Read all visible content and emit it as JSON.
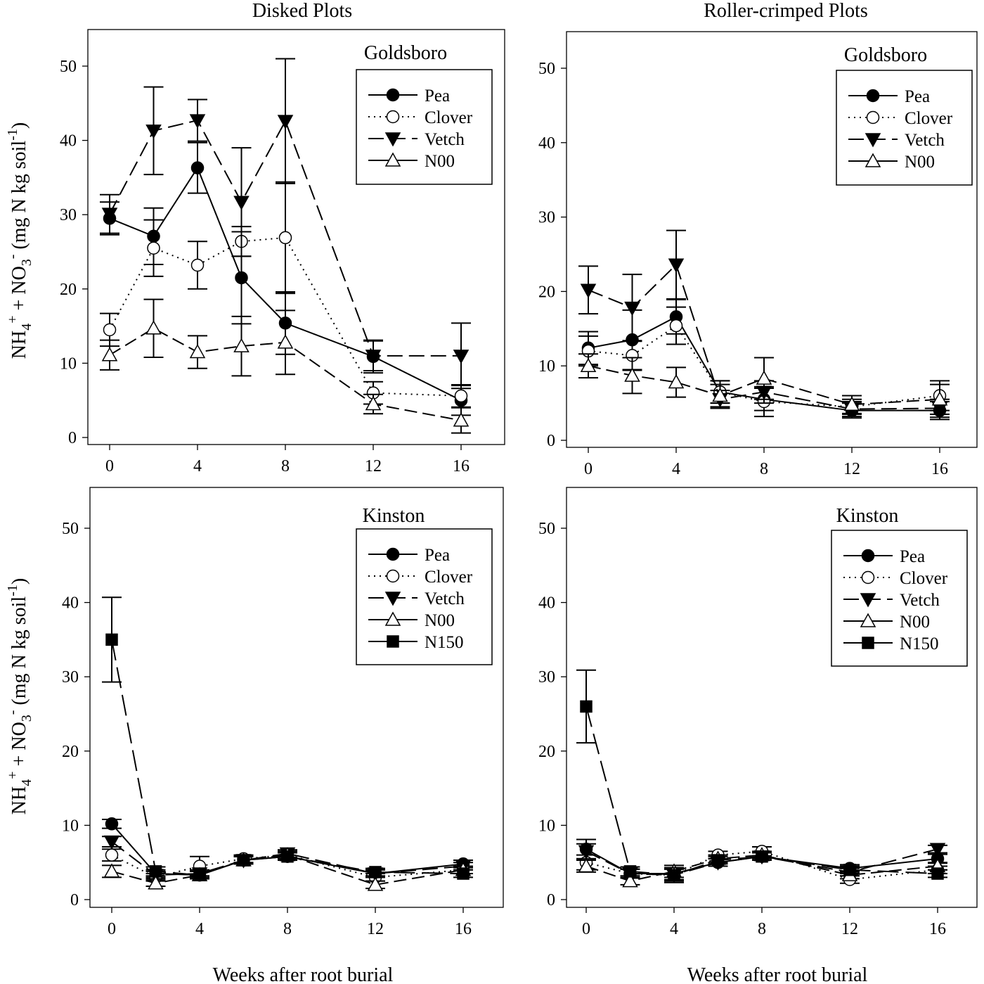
{
  "chart_data": [
    {
      "type": "line",
      "column_title": "Disked Plots",
      "site": "Goldsboro",
      "x": [
        0,
        2,
        4,
        6,
        8,
        12,
        16
      ],
      "ylim": [
        0,
        55
      ],
      "yticks": [
        0,
        10,
        20,
        30,
        40,
        50
      ],
      "xticks": [
        0,
        4,
        8,
        12,
        16
      ],
      "legend_position": "top-right",
      "series": [
        {
          "name": "Pea",
          "values": [
            29.5,
            27.1,
            36.3,
            21.5,
            15.4,
            10.9,
            5.0
          ],
          "err": [
            2.2,
            3.8,
            3.4,
            6.2,
            4.2,
            2.2,
            2.0
          ]
        },
        {
          "name": "Clover",
          "values": [
            14.5,
            25.5,
            23.2,
            26.4,
            26.9,
            6.0,
            5.6
          ],
          "err": [
            2.2,
            3.8,
            3.2,
            2.0,
            7.5,
            1.5,
            1.5
          ]
        },
        {
          "name": "Vetch",
          "values": [
            30.1,
            41.3,
            42.7,
            31.7,
            42.6,
            11.0,
            11.0
          ],
          "err": [
            2.6,
            5.9,
            2.8,
            7.3,
            8.4,
            2.0,
            4.4
          ]
        },
        {
          "name": "N00",
          "values": [
            11.1,
            14.7,
            11.5,
            12.3,
            12.8,
            4.5,
            2.3
          ],
          "err": [
            2.0,
            3.9,
            2.2,
            4.0,
            4.3,
            1.3,
            1.7
          ]
        }
      ]
    },
    {
      "type": "line",
      "column_title": "Roller-crimped Plots",
      "site": "Goldsboro",
      "x": [
        0,
        2,
        4,
        6,
        8,
        12,
        16
      ],
      "ylim": [
        0,
        55
      ],
      "yticks": [
        0,
        10,
        20,
        30,
        40,
        50
      ],
      "xticks": [
        0,
        4,
        8,
        12,
        16
      ],
      "legend_position": "top-right",
      "series": [
        {
          "name": "Pea",
          "values": [
            12.4,
            13.5,
            16.6,
            6.5,
            5.5,
            4.0,
            4.0
          ],
          "err": [
            2.2,
            4.0,
            2.3,
            1.5,
            1.5,
            1.0,
            1.2
          ]
        },
        {
          "name": "Clover",
          "values": [
            12.0,
            11.4,
            15.4,
            6.5,
            5.2,
            4.5,
            6.0
          ],
          "err": [
            2.0,
            2.0,
            2.5,
            1.5,
            2.0,
            1.0,
            2.0
          ]
        },
        {
          "name": "Vetch",
          "values": [
            20.2,
            17.8,
            23.6,
            5.5,
            6.5,
            4.2,
            4.3
          ],
          "err": [
            3.2,
            4.5,
            4.6,
            1.2,
            1.5,
            1.0,
            1.2
          ]
        },
        {
          "name": "N00",
          "values": [
            10.0,
            8.7,
            7.8,
            6.0,
            8.3,
            4.8,
            5.5
          ],
          "err": [
            1.6,
            2.4,
            2.0,
            1.5,
            2.8,
            1.2,
            2.0
          ]
        }
      ]
    },
    {
      "type": "line",
      "site": "Kinston",
      "xlabel": "Weeks after root burial",
      "x": [
        0,
        2,
        4,
        6,
        8,
        12,
        16
      ],
      "ylim": [
        0,
        55
      ],
      "yticks": [
        0,
        10,
        20,
        30,
        40,
        50
      ],
      "xticks": [
        0,
        4,
        8,
        12,
        16
      ],
      "legend_position": "top-right",
      "series": [
        {
          "name": "Pea",
          "values": [
            10.2,
            3.5,
            3.3,
            5.3,
            5.8,
            3.5,
            4.8
          ],
          "err": [
            0.6,
            0.5,
            0.5,
            0.5,
            0.5,
            0.5,
            0.5
          ]
        },
        {
          "name": "Clover",
          "values": [
            6.0,
            3.0,
            4.5,
            5.5,
            6.0,
            3.0,
            4.0
          ],
          "err": [
            0.8,
            0.5,
            1.3,
            0.5,
            0.5,
            0.5,
            0.5
          ]
        },
        {
          "name": "Vetch",
          "values": [
            7.8,
            3.3,
            3.5,
            5.3,
            6.2,
            3.5,
            4.5
          ],
          "err": [
            0.7,
            0.5,
            0.5,
            0.5,
            0.5,
            0.5,
            0.5
          ]
        },
        {
          "name": "N00",
          "values": [
            3.8,
            2.2,
            3.3,
            5.3,
            6.0,
            2.0,
            4.0
          ],
          "err": [
            0.8,
            0.4,
            0.5,
            0.5,
            0.5,
            0.5,
            0.5
          ]
        },
        {
          "name": "N150",
          "values": [
            35.0,
            3.8,
            3.3,
            5.3,
            5.8,
            3.7,
            3.5
          ],
          "err": [
            5.7,
            0.6,
            0.5,
            0.5,
            0.5,
            0.5,
            0.5
          ]
        }
      ]
    },
    {
      "type": "line",
      "site": "Kinston",
      "xlabel": "Weeks after root burial",
      "x": [
        0,
        2,
        4,
        6,
        8,
        12,
        16
      ],
      "ylim": [
        0,
        55
      ],
      "yticks": [
        0,
        10,
        20,
        30,
        40,
        50
      ],
      "xticks": [
        0,
        4,
        8,
        12,
        16
      ],
      "legend_position": "top-right",
      "series": [
        {
          "name": "Pea",
          "values": [
            6.8,
            3.5,
            3.5,
            5.0,
            5.8,
            4.2,
            5.5
          ],
          "err": [
            1.3,
            0.6,
            0.8,
            0.5,
            0.5,
            0.5,
            0.6
          ]
        },
        {
          "name": "Clover",
          "values": [
            5.0,
            3.5,
            3.3,
            6.0,
            6.5,
            2.7,
            4.0
          ],
          "err": [
            1.0,
            0.6,
            0.8,
            0.5,
            0.6,
            0.5,
            0.5
          ]
        },
        {
          "name": "Vetch",
          "values": [
            6.5,
            3.5,
            3.3,
            5.0,
            5.8,
            3.7,
            6.8
          ],
          "err": [
            1.0,
            0.6,
            0.8,
            0.5,
            0.5,
            0.5,
            0.5
          ]
        },
        {
          "name": "N00",
          "values": [
            4.5,
            2.5,
            3.8,
            5.5,
            6.0,
            3.3,
            4.5
          ],
          "err": [
            0.8,
            0.5,
            0.8,
            0.5,
            0.5,
            0.5,
            0.5
          ]
        },
        {
          "name": "N150",
          "values": [
            26.0,
            3.8,
            3.3,
            5.3,
            5.8,
            4.0,
            3.5
          ],
          "err": [
            4.9,
            0.6,
            1.0,
            0.5,
            0.5,
            0.5,
            0.5
          ]
        }
      ]
    }
  ],
  "ylabel_parts": [
    "NH",
    "4",
    "+",
    " + NO",
    "3",
    "-",
    " (mg N kg soil",
    "-1",
    ")"
  ],
  "styles": {
    "Pea": {
      "marker": "filled-circle",
      "line": "solid"
    },
    "Clover": {
      "marker": "open-circle",
      "line": "dotted"
    },
    "Vetch": {
      "marker": "filled-triangle-down",
      "line": "dashed"
    },
    "N00": {
      "marker": "open-triangle-up",
      "line": "dashed"
    },
    "N150": {
      "marker": "filled-square",
      "line": "long-dash"
    }
  }
}
